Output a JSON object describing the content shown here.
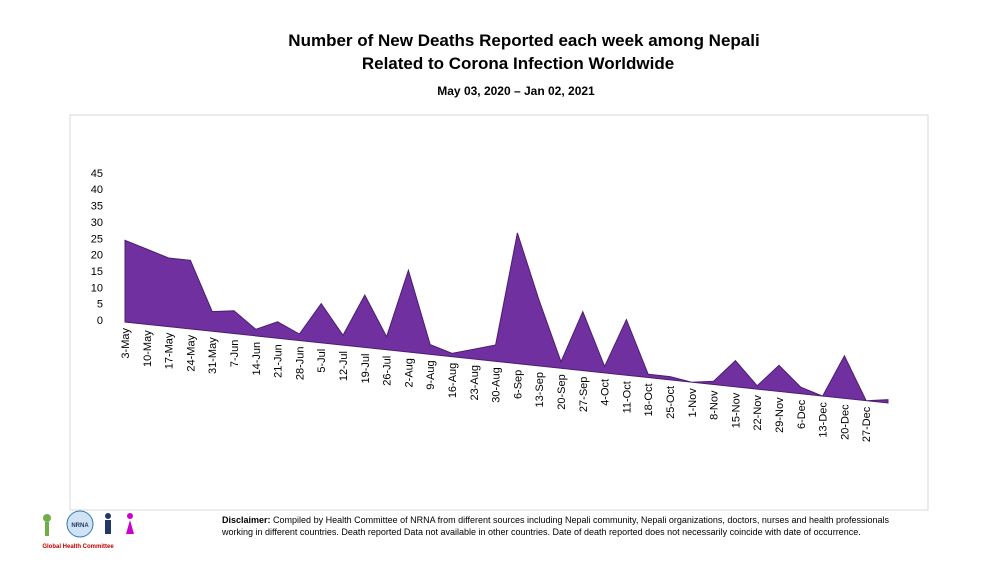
{
  "chart_data": {
    "type": "area",
    "title": "Number of New Deaths Reported each week among Nepali",
    "title_line2": "Related to Corona Infection Worldwide",
    "subtitle": "May 03, 2020 – Jan 02, 2021",
    "categories": [
      "3-May",
      "10-May",
      "17-May",
      "24-May",
      "31-May",
      "7-Jun",
      "14-Jun",
      "21-Jun",
      "28-Jun",
      "5-Jul",
      "12-Jul",
      "19-Jul",
      "26-Jul",
      "2-Aug",
      "9-Aug",
      "16-Aug",
      "23-Aug",
      "30-Aug",
      "6-Sep",
      "13-Sep",
      "20-Sep",
      "27-Sep",
      "4-Oct",
      "11-Oct",
      "18-Oct",
      "25-Oct",
      "1-Nov",
      "8-Nov",
      "15-Nov",
      "22-Nov",
      "29-Nov",
      "6-Dec",
      "13-Dec",
      "20-Dec",
      "27-Dec",
      null
    ],
    "values": [
      25,
      23,
      21,
      21,
      6,
      7,
      2,
      5,
      2,
      12,
      3,
      16,
      4,
      25,
      3,
      1,
      3,
      5,
      40,
      20,
      2,
      18,
      2,
      17,
      1,
      1,
      0,
      1,
      8,
      1,
      8,
      2,
      0,
      13,
      0,
      1
    ],
    "color": "#7030a0",
    "ylim": [
      0,
      45
    ],
    "yticks": [
      0,
      5,
      10,
      15,
      20,
      25,
      30,
      35,
      40,
      45
    ]
  },
  "logo": {
    "caption": "Global Health Committee",
    "badge": "NRNA"
  },
  "disclaimer": {
    "label": "Disclaimer:",
    "text": "Compiled by Health Committee  of NRNA from different sources including Nepali community, Nepali organizations, doctors, nurses and health professionals working in different countries. Death reported Data not available in other countries. Date of death reported  does not necessarily coincide with date of occurrence."
  }
}
